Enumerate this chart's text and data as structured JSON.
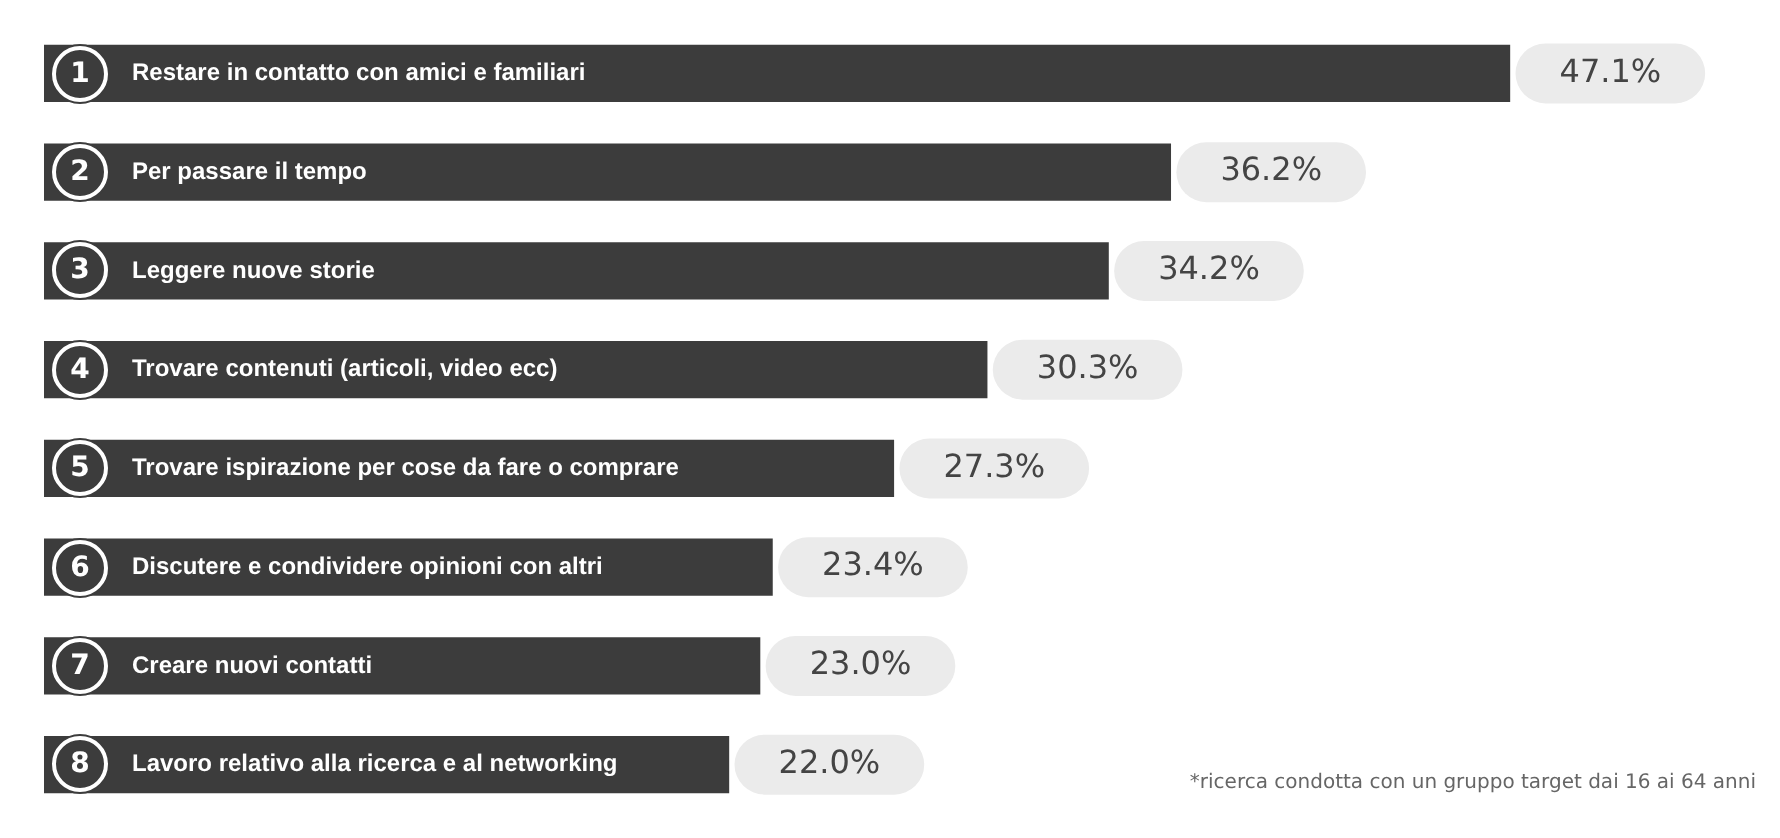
{
  "chart_data": {
    "type": "bar",
    "orientation": "horizontal",
    "categories": [
      "Restare in contatto con amici e familiari",
      "Per passare il tempo",
      "Leggere nuove storie",
      "Trovare contenuti (articoli, video ecc)",
      "Trovare ispirazione per cose da fare o comprare",
      "Discutere e condividere opinioni con altri",
      "Creare nuovi contatti",
      "Lavoro relativo alla ricerca e al networking"
    ],
    "values": [
      47.1,
      36.2,
      34.2,
      30.3,
      27.3,
      23.4,
      23.0,
      22.0
    ],
    "value_labels": [
      "47.1%",
      "36.2%",
      "34.2%",
      "30.3%",
      "27.3%",
      "23.4%",
      "23.0%",
      "22.0%"
    ],
    "color": "#3c3c3c",
    "annotations": [
      {
        "text": "1",
        "y": "Restare in contatto con amici e familiari"
      },
      {
        "text": "2",
        "y": "Per passare il tempo"
      },
      {
        "text": "3",
        "y": "Leggere nuove storie"
      },
      {
        "text": "4",
        "y": "Trovare contenuti (articoli, video ecc)"
      },
      {
        "text": "5",
        "y": "Trovare ispirazione per cose da fare o comprare"
      },
      {
        "text": "6",
        "y": "Discutere e condividere opinioni con altri"
      },
      {
        "text": "7",
        "y": "Creare nuovi contatti"
      },
      {
        "text": "8",
        "y": "Lavoro relativo alla ricerca e al networking"
      },
      "*ricerca condotta con un gruppo target dai 16 ai 64 anni"
    ],
    "legend": false
  }
}
